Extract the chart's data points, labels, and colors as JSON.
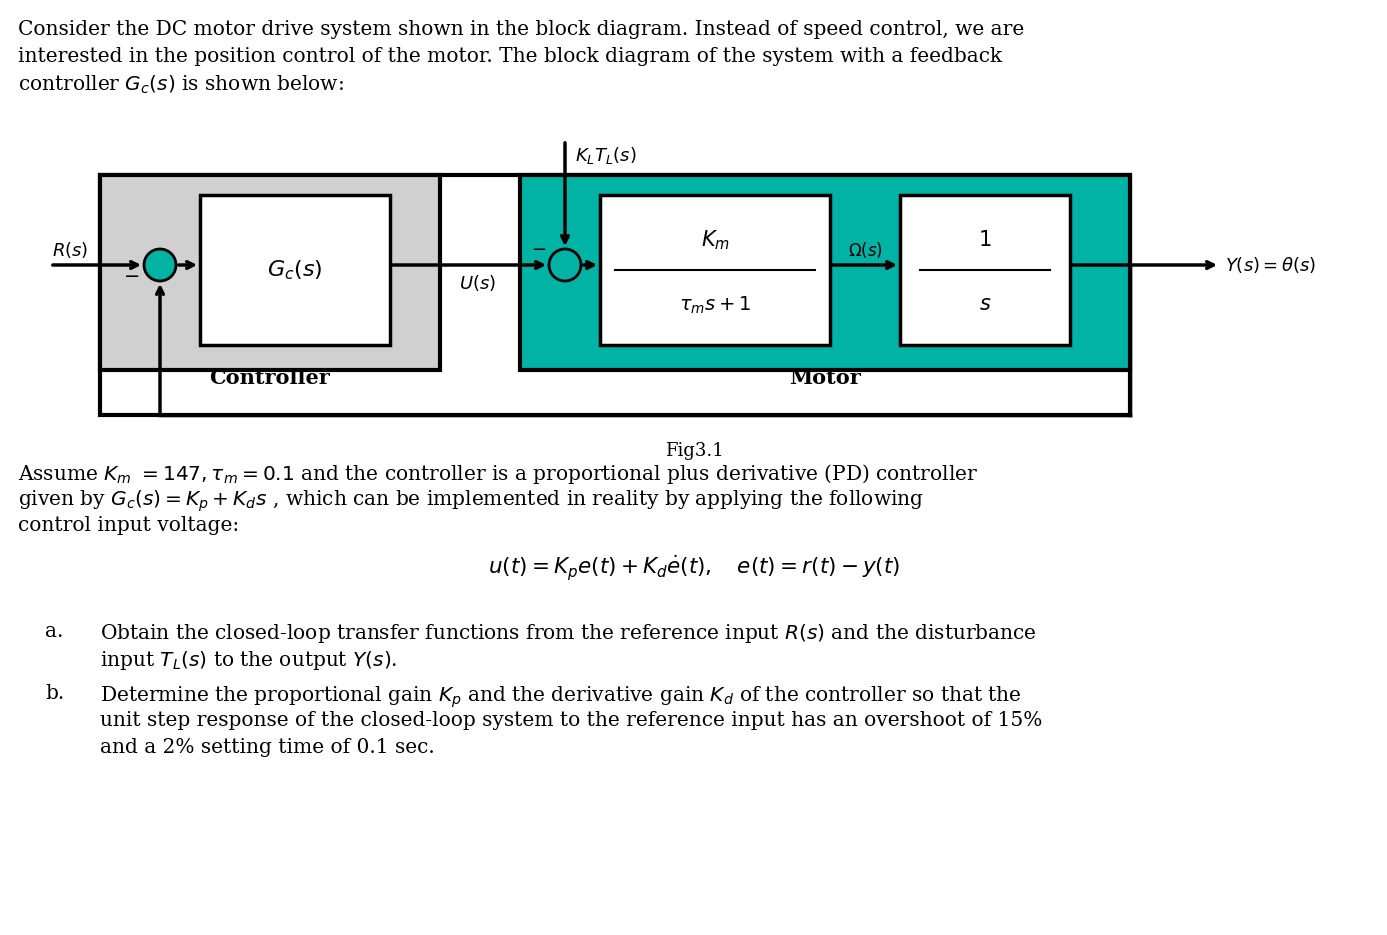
{
  "bg_color": "#ffffff",
  "teal_color": "#00b3a4",
  "gray_color": "#d0d0d0",
  "white_color": "#ffffff",
  "black_color": "#000000",
  "fig_caption": "Fig3.1",
  "top_line1": "Consider the DC motor drive system shown in the block diagram. Instead of speed control, we are",
  "top_line2": "interested in the position control of the motor. The block diagram of the system with a feedback",
  "top_line3": "controller $\\mathit{G_c(s)}$ is shown below:",
  "p2_line1": "Assume $\\mathit{K_m}$ =147, $\\mathit{\\tau_m}$ = 0.1 and the controller is a proportional plus derivative (PD) controller",
  "p2_line2": "given by $\\mathit{G_c(s) = K_p + K_d s}$ , which can be implemented in reality by applying the following",
  "p2_line3": "control input voltage:",
  "eq": "$\\mathit{u(t) = K_p e(t) + K_d \\dot{e}(t), \\quad e(t) = r(t) - y(t)}$",
  "a_label": "a.",
  "a_line1": "Obtain the closed-loop transfer functions from the reference input $\\mathit{R(s)}$ and the disturbance",
  "a_line2": "input $\\mathit{T_L(s)}$ to the output $\\mathit{Y(s)}$.",
  "b_label": "b.",
  "b_line1": "Determine the proportional gain $\\mathit{K_p}$ and the derivative gain $\\mathit{K_d}$ of the controller so that the",
  "b_line2": "unit step response of the closed-loop system to the reference input has an overshoot of 15%",
  "b_line3": "and a 2% setting time of 0.1 sec."
}
